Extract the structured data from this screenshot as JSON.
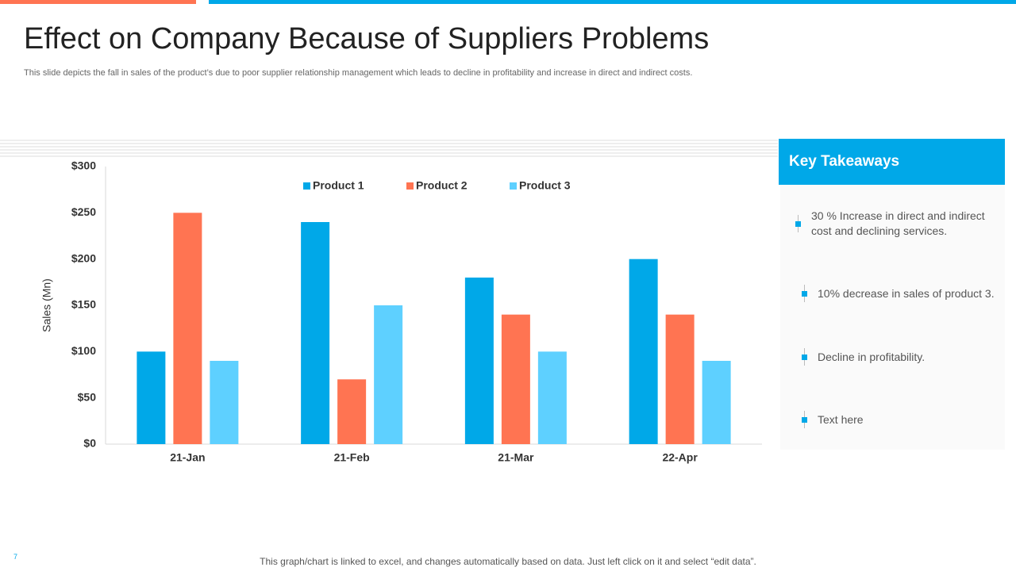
{
  "title": "Effect on Company Because of Suppliers Problems",
  "subtitle": "This slide depicts the fall in sales of the product’s due to poor supplier relationship management which leads to decline in profitability and increase in direct and indirect costs.",
  "takeaways": {
    "title": "Key Takeaways",
    "items": [
      "30 % Increase in direct and indirect cost and declining services.",
      "10% decrease in sales of product 3.",
      "Decline in profitability.",
      "Text here"
    ]
  },
  "footer": "This graph/chart is linked to excel, and changes automatically based on data. Just left click on it and select “edit data”.",
  "page_number": "7",
  "chart_data": {
    "type": "bar",
    "y_label": "Sales (Mn)",
    "categories": [
      "21-Jan",
      "21-Feb",
      "21-Mar",
      "22-Apr"
    ],
    "series": [
      {
        "name": "Product 1",
        "color": "#00a8e8",
        "values": [
          100,
          240,
          180,
          200
        ]
      },
      {
        "name": "Product 2",
        "color": "#ff7452",
        "values": [
          250,
          70,
          140,
          140
        ]
      },
      {
        "name": "Product 3",
        "color": "#5ed0ff",
        "values": [
          90,
          150,
          100,
          90
        ]
      }
    ],
    "ylim": [
      0,
      300
    ],
    "yticks": [
      {
        "value": 0,
        "label": "$0"
      },
      {
        "value": 50,
        "label": "$50"
      },
      {
        "value": 100,
        "label": "$100"
      },
      {
        "value": 150,
        "label": "$150"
      },
      {
        "value": 200,
        "label": "$200"
      },
      {
        "value": 250,
        "label": "$250"
      },
      {
        "value": 300,
        "label": "$300"
      }
    ],
    "grid": false,
    "legend": "top"
  }
}
